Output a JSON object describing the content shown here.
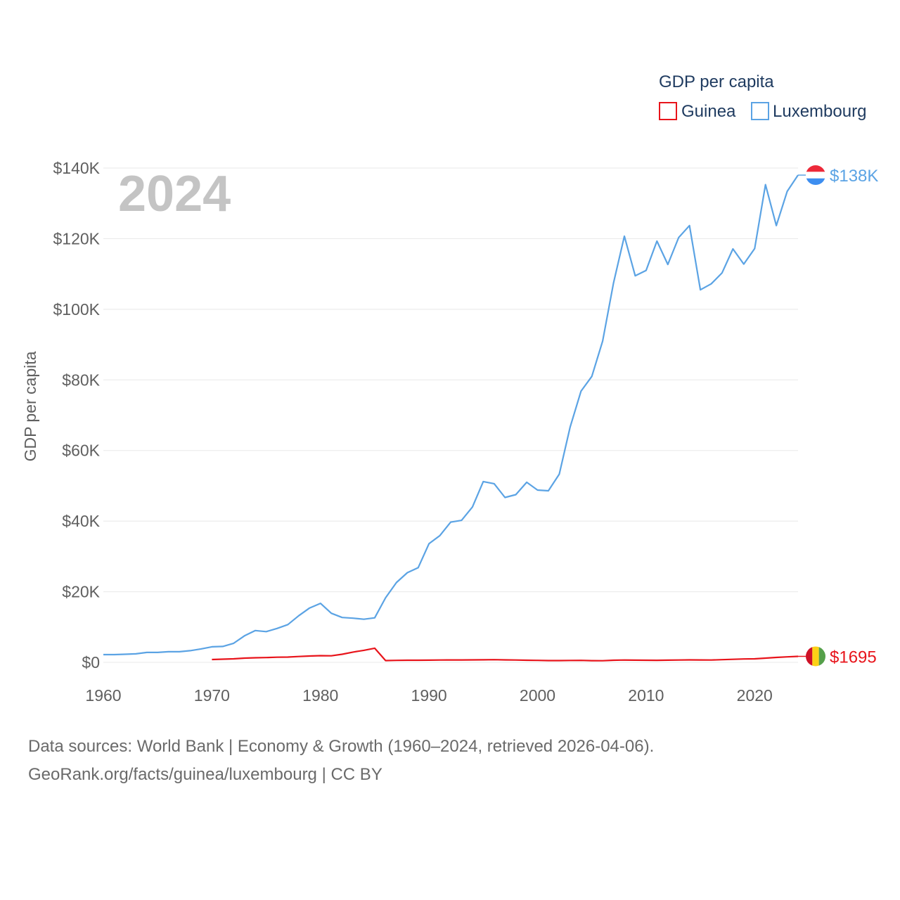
{
  "chart_data": {
    "type": "line",
    "title": "GDP per capita",
    "ylabel": "GDP per capita",
    "xlabel": "",
    "year_display": "2024",
    "xlim": [
      1960,
      2024
    ],
    "ylim": [
      0,
      140000
    ],
    "x_ticks": [
      1960,
      1970,
      1980,
      1990,
      2000,
      2010,
      2020
    ],
    "x_tick_labels": [
      "1960",
      "1970",
      "1980",
      "1990",
      "2000",
      "2010",
      "2020"
    ],
    "y_ticks": [
      0,
      20000,
      40000,
      60000,
      80000,
      100000,
      120000,
      140000
    ],
    "y_tick_labels": [
      "$0",
      "$20K",
      "$40K",
      "$60K",
      "$80K",
      "$100K",
      "$120K",
      "$140K"
    ],
    "legend": {
      "title": "GDP per capita",
      "position": "top-right"
    },
    "series": [
      {
        "name": "Guinea",
        "color": "#e8141b",
        "end_label": "$1695",
        "flag": "guinea-flag",
        "x": [
          1970,
          1971,
          1972,
          1973,
          1974,
          1975,
          1976,
          1977,
          1978,
          1979,
          1980,
          1981,
          1982,
          1983,
          1984,
          1985,
          1986,
          1987,
          1988,
          1989,
          1990,
          1991,
          1992,
          1993,
          1994,
          1995,
          1996,
          1997,
          1998,
          1999,
          2000,
          2001,
          2002,
          2003,
          2004,
          2005,
          2006,
          2007,
          2008,
          2009,
          2010,
          2011,
          2012,
          2013,
          2014,
          2015,
          2016,
          2017,
          2018,
          2019,
          2020,
          2021,
          2022,
          2023,
          2024
        ],
        "values": [
          800,
          900,
          1000,
          1200,
          1300,
          1350,
          1450,
          1500,
          1650,
          1800,
          1900,
          1850,
          2300,
          2900,
          3400,
          4000,
          500,
          550,
          600,
          600,
          620,
          650,
          680,
          680,
          700,
          720,
          750,
          700,
          650,
          600,
          550,
          500,
          500,
          530,
          560,
          480,
          460,
          600,
          650,
          620,
          600,
          580,
          620,
          650,
          700,
          680,
          660,
          750,
          850,
          950,
          1000,
          1200,
          1400,
          1550,
          1695
        ]
      },
      {
        "name": "Luxembourg",
        "color": "#5ba3e4",
        "end_label": "$138K",
        "flag": "luxembourg-flag",
        "x": [
          1960,
          1961,
          1962,
          1963,
          1964,
          1965,
          1966,
          1967,
          1968,
          1969,
          1970,
          1971,
          1972,
          1973,
          1974,
          1975,
          1976,
          1977,
          1978,
          1979,
          1980,
          1981,
          1982,
          1983,
          1984,
          1985,
          1986,
          1987,
          1988,
          1989,
          1990,
          1991,
          1992,
          1993,
          1994,
          1995,
          1996,
          1997,
          1998,
          1999,
          2000,
          2001,
          2002,
          2003,
          2004,
          2005,
          2006,
          2007,
          2008,
          2009,
          2010,
          2011,
          2012,
          2013,
          2014,
          2015,
          2016,
          2017,
          2018,
          2019,
          2020,
          2021,
          2022,
          2023,
          2024
        ],
        "values": [
          2200,
          2200,
          2300,
          2400,
          2800,
          2800,
          3000,
          3000,
          3300,
          3800,
          4400,
          4500,
          5400,
          7500,
          9000,
          8700,
          9600,
          10700,
          13200,
          15400,
          16700,
          13900,
          12700,
          12500,
          12200,
          12600,
          18300,
          22600,
          25400,
          26800,
          33600,
          35900,
          39700,
          40200,
          44000,
          51200,
          50600,
          46700,
          47500,
          51000,
          48800,
          48600,
          53300,
          66600,
          76800,
          81000,
          91000,
          107500,
          120700,
          109500,
          111000,
          119300,
          112700,
          120300,
          123700,
          105500,
          107200,
          110300,
          117100,
          112800,
          117200,
          135300,
          123700,
          133400,
          138000
        ]
      }
    ],
    "source_line1": "Data sources: World Bank | Economy & Growth (1960–2024, retrieved 2026-04-06).",
    "source_line2": "GeoRank.org/facts/guinea/luxembourg | CC BY"
  }
}
